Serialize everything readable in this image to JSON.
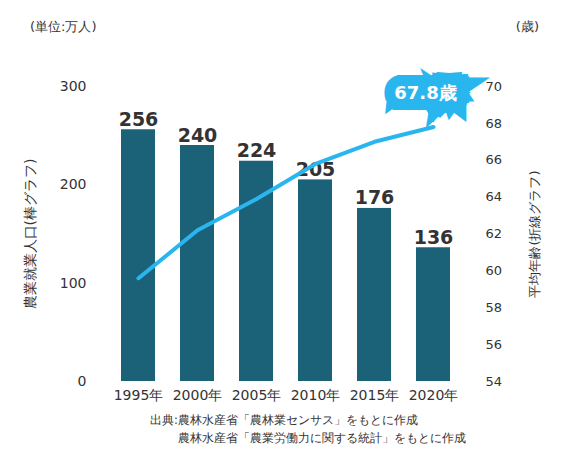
{
  "chart_data": {
    "type": "bar",
    "categories": [
      "1995年",
      "2000年",
      "2005年",
      "2010年",
      "2015年",
      "2020年"
    ],
    "series": [
      {
        "type": "bar",
        "color": "#1b6178",
        "values": [
          256,
          240,
          224,
          205,
          176,
          136
        ],
        "data_labels": true
      },
      {
        "type": "line",
        "axis": "y2",
        "color": "#29b6ef",
        "values": [
          59.6,
          62.2,
          63.9,
          65.8,
          67.0,
          67.8
        ]
      }
    ],
    "ylim": [
      0,
      300
    ],
    "yticks": [
      0,
      100,
      200,
      300
    ],
    "y2lim": [
      54,
      70
    ],
    "y2ticks": [
      54,
      56,
      58,
      60,
      62,
      64,
      66,
      68,
      70
    ],
    "ylabel": "農業就業人口(棒グラフ)",
    "y2label": "平均年齢(折線グラフ)",
    "y_unit": "(単位:万人)",
    "y2_unit": "(歳)",
    "annotations": [
      {
        "text": "67.8歳",
        "x": "2020年",
        "y": 67.8,
        "axis": "y2"
      }
    ],
    "source": [
      "出典:農林水産省「農林業センサス」をもとに作成",
      "農林水産省「農業労働力に関する統計」をもとに作成"
    ],
    "grid": false
  }
}
